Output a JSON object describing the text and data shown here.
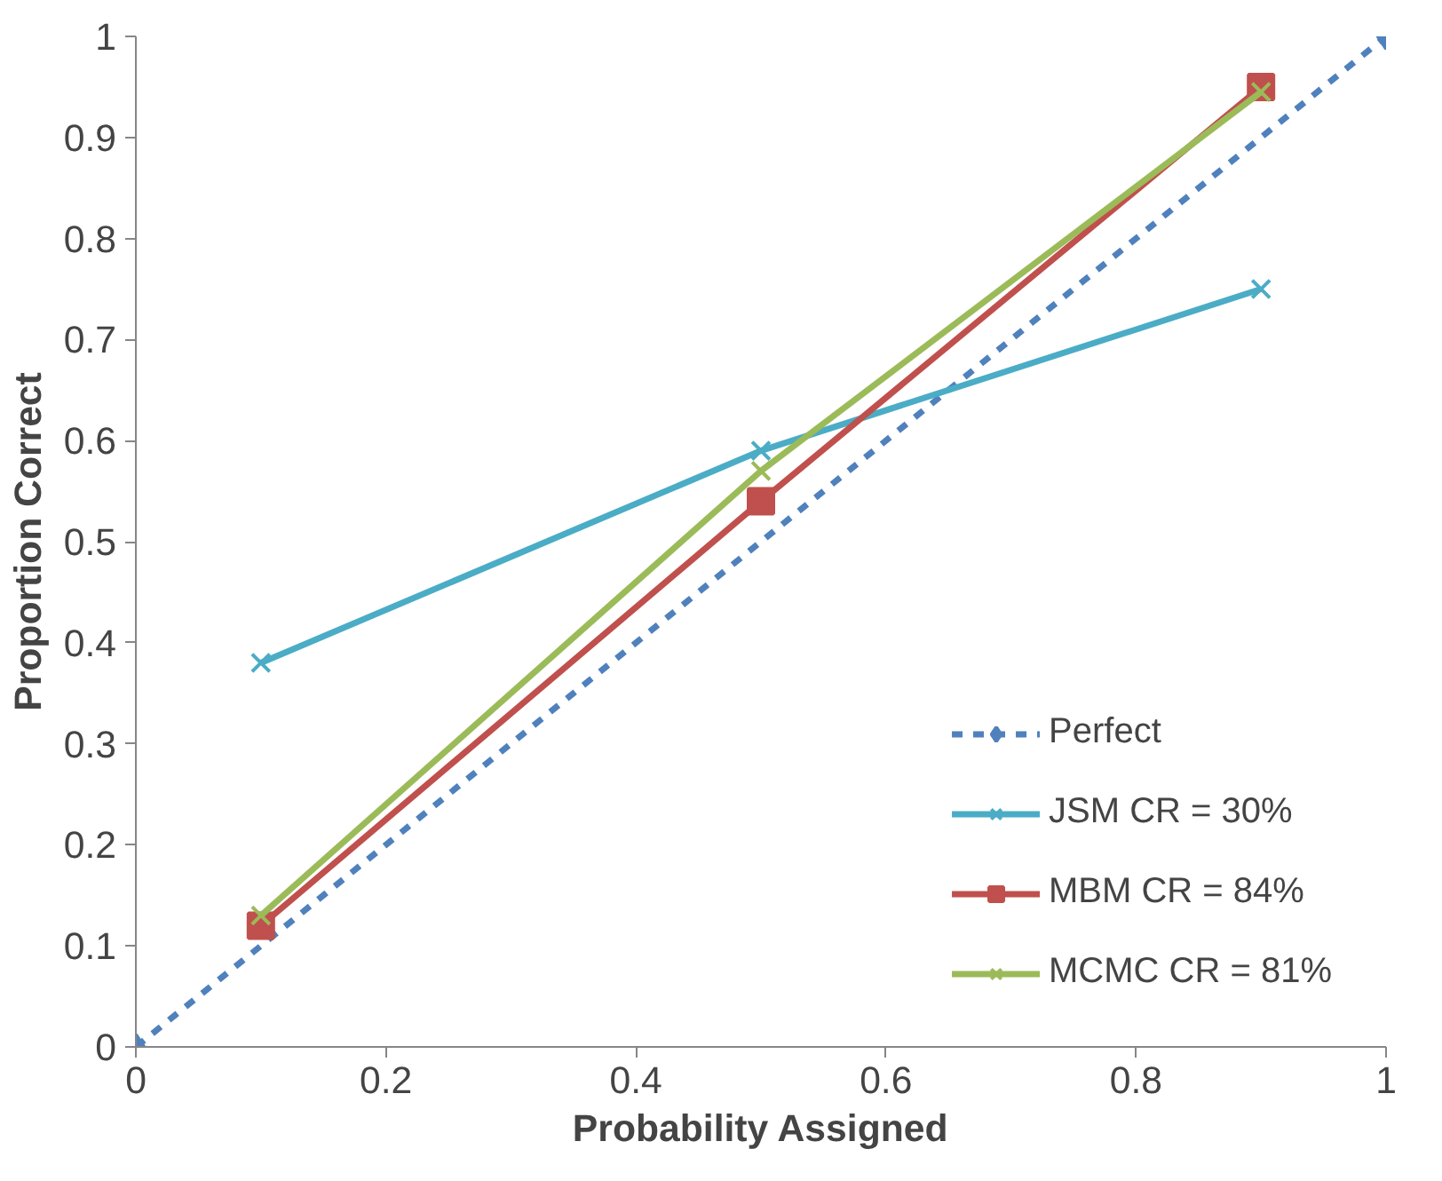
{
  "chart_data": {
    "type": "line",
    "xlabel": "Probability Assigned",
    "ylabel": "Proportion Correct",
    "xlim": [
      0,
      1
    ],
    "ylim": [
      0,
      1
    ],
    "xticks": [
      0,
      0.2,
      0.4,
      0.6,
      0.8,
      1
    ],
    "yticks": [
      0,
      0.1,
      0.2,
      0.3,
      0.4,
      0.5,
      0.6,
      0.7,
      0.8,
      0.9,
      1
    ],
    "grid": false,
    "legend": "bottom right",
    "x": [
      0.1,
      0.5,
      0.9
    ],
    "series": [
      {
        "name": "Perfect",
        "color": "#4f81bd",
        "x": [
          0,
          1
        ],
        "values": [
          0,
          1
        ],
        "marker": "diamond",
        "line_style": "dashed"
      },
      {
        "name": "JSM CR = 30%",
        "color": "#4bacc6",
        "values": [
          0.38,
          0.59,
          0.75
        ],
        "marker": "cross",
        "line_style": "solid"
      },
      {
        "name": "MBM CR = 84%",
        "color": "#c0504d",
        "values": [
          0.12,
          0.54,
          0.95
        ],
        "marker": "square",
        "line_style": "solid"
      },
      {
        "name": "MCMC CR = 81%",
        "color": "#9bbb59",
        "values": [
          0.13,
          0.57,
          0.945
        ],
        "marker": "cross",
        "line_style": "solid"
      }
    ]
  }
}
